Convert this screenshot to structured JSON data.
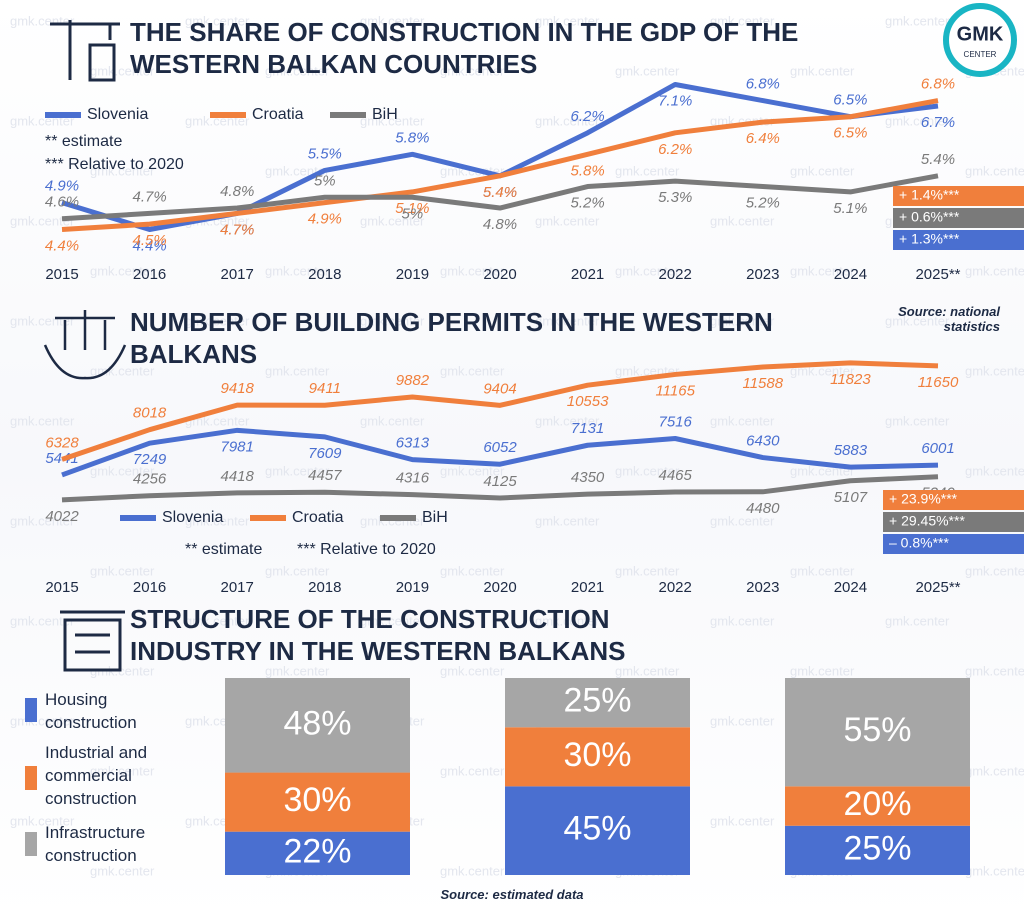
{
  "logo": {
    "text1": "GMK",
    "text2": "CENTER"
  },
  "watermark": "gmk.center",
  "chart_data": [
    {
      "type": "line",
      "title": "THE SHARE OF CONSTRUCTION IN THE GDP OF THE WESTERN BALKAN COUNTRIES",
      "categories": [
        "2015",
        "2016",
        "2017",
        "2018",
        "2019",
        "2020",
        "2021",
        "2022",
        "2023",
        "2024",
        "2025**"
      ],
      "series": [
        {
          "name": "Slovenia",
          "color": "#4a6fd0",
          "values": [
            4.9,
            4.4,
            4.7,
            5.5,
            5.8,
            5.4,
            6.2,
            7.1,
            6.8,
            6.5,
            6.7
          ],
          "value_labels": [
            "4.9%",
            "4.4%",
            "4.7%",
            "5.5%",
            "5.8%",
            "5.4%",
            "6.2%",
            "7.1%",
            "6.8%",
            "6.5%",
            "6.7%"
          ]
        },
        {
          "name": "Croatia",
          "color": "#f07f3c",
          "values": [
            4.4,
            4.5,
            4.7,
            4.9,
            5.1,
            5.4,
            5.8,
            6.2,
            6.4,
            6.5,
            6.8
          ],
          "value_labels": [
            "4.4%",
            "4.5%",
            "4.7%",
            "4.9%",
            "5.1%",
            "5.4%",
            "5.8%",
            "6.2%",
            "6.4%",
            "6.5%",
            "6.8%"
          ]
        },
        {
          "name": "BiH",
          "color": "#7a7a7a",
          "values": [
            4.6,
            4.7,
            4.8,
            5,
            5,
            4.8,
            5.2,
            5.3,
            5.2,
            5.1,
            5.4
          ],
          "value_labels": [
            "4.6%",
            "4.7%",
            "4.8%",
            "5%",
            "5%",
            "4.8%",
            "5.2%",
            "5.3%",
            "5.2%",
            "5.1%",
            "5.4%"
          ]
        }
      ],
      "ylim": [
        4,
        7.5
      ],
      "notes": [
        "** estimate",
        "*** Relative to 2020"
      ],
      "badges": [
        {
          "label": "+ 1.4%***",
          "color": "#f07f3c"
        },
        {
          "label": "+ 0.6%***",
          "color": "#7a7a7a"
        },
        {
          "label": "+ 1.3%***",
          "color": "#4a6fd0"
        }
      ],
      "source": "Source: national statistics"
    },
    {
      "type": "line",
      "title": "NUMBER OF BUILDING PERMITS IN THE WESTERN BALKANS",
      "categories": [
        "2015",
        "2016",
        "2017",
        "2018",
        "2019",
        "2020",
        "2021",
        "2022",
        "2023",
        "2024",
        "2025**"
      ],
      "series": [
        {
          "name": "Slovenia",
          "color": "#4a6fd0",
          "values": [
            5441,
            7249,
            7981,
            7609,
            6313,
            6052,
            7131,
            7516,
            6430,
            5883,
            6001
          ]
        },
        {
          "name": "Croatia",
          "color": "#f07f3c",
          "values": [
            6328,
            8018,
            9418,
            9411,
            9882,
            9404,
            10553,
            11165,
            11588,
            11823,
            11650
          ]
        },
        {
          "name": "BiH",
          "color": "#7a7a7a",
          "values": [
            4022,
            4256,
            4418,
            4457,
            4316,
            4125,
            4350,
            4465,
            4480,
            5107,
            5340
          ]
        }
      ],
      "ylim": [
        3500,
        12500
      ],
      "notes": [
        "** estimate",
        "*** Relative to 2020"
      ],
      "badges": [
        {
          "label": "+ 23.9%***",
          "color": "#f07f3c"
        },
        {
          "label": "+ 29.45%***",
          "color": "#7a7a7a"
        },
        {
          "label": "– 0.8%***",
          "color": "#4a6fd0"
        }
      ]
    },
    {
      "type": "bar",
      "stacked": true,
      "title": "STRUCTURE OF THE CONSTRUCTION INDUSTRY IN THE WESTERN BALKANS",
      "categories": [
        null,
        null,
        null
      ],
      "series": [
        {
          "name": "Housing construction",
          "color": "#4a6fd0",
          "values": [
            22,
            45,
            25
          ],
          "value_labels": [
            "22%",
            "45%",
            "25%"
          ]
        },
        {
          "name": "Industrial and commercial construction",
          "color": "#f07f3c",
          "values": [
            30,
            30,
            20
          ],
          "value_labels": [
            "30%",
            "30%",
            "20%"
          ]
        },
        {
          "name": "Infrastructure construction",
          "color": "#a6a6a6",
          "values": [
            48,
            25,
            55
          ],
          "value_labels": [
            "48%",
            "25%",
            "55%"
          ]
        }
      ],
      "ylim": [
        0,
        100
      ],
      "source": "Source: estimated data"
    }
  ]
}
